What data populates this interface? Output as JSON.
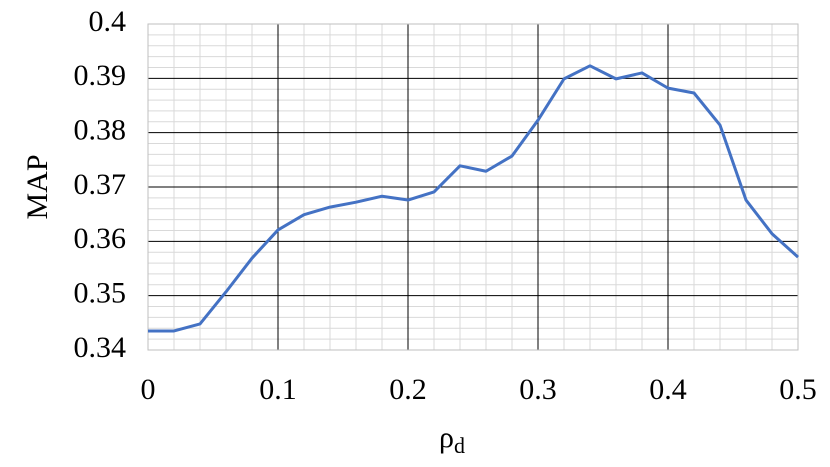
{
  "chart_data": {
    "type": "line",
    "xlabel": "ρ",
    "xlabel_subscript": "d",
    "ylabel": "MAP",
    "x": [
      0,
      0.02,
      0.04,
      0.06,
      0.08,
      0.1,
      0.12,
      0.14,
      0.16,
      0.18,
      0.2,
      0.22,
      0.24,
      0.26,
      0.28,
      0.3,
      0.32,
      0.34,
      0.36,
      0.38,
      0.4,
      0.42,
      0.44,
      0.46,
      0.48,
      0.5
    ],
    "series": [
      {
        "color": "#4472c4",
        "values": [
          0.3435,
          0.3435,
          0.3448,
          0.3507,
          0.3569,
          0.3621,
          0.3649,
          0.3663,
          0.3672,
          0.3683,
          0.3676,
          0.3691,
          0.3739,
          0.3729,
          0.3757,
          0.3823,
          0.3899,
          0.3923,
          0.3899,
          0.391,
          0.3882,
          0.3873,
          0.3814,
          0.3676,
          0.3614,
          0.3571
        ]
      }
    ],
    "xlim": [
      0,
      0.5
    ],
    "xticks": [
      0,
      0.1,
      0.2,
      0.3,
      0.4,
      0.5
    ],
    "ylim": [
      0.34,
      0.4
    ],
    "yticks": [
      0.34,
      0.35,
      0.36,
      0.37,
      0.38,
      0.39,
      0.4
    ],
    "grid": true,
    "minor_grid": true
  }
}
